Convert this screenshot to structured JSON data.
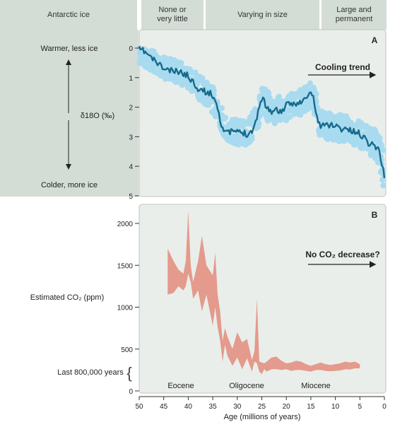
{
  "header": {
    "left_label": "Antarctic ice",
    "segments": [
      {
        "label": "None or\nvery little"
      },
      {
        "label": "Varying in size"
      },
      {
        "label": "Large and\npermanent"
      }
    ]
  },
  "colors": {
    "left_band": "#d4dcd6",
    "panel_bg": "#eaeeea",
    "raw_points": "#a8dbf0",
    "smoothed_line": "#166a8a",
    "co2_band": "#e49a8c",
    "header_bg": "#d4dcd6"
  },
  "chart_data": [
    {
      "type": "line",
      "panel_label": "A",
      "annotation": "Cooling trend",
      "ylabel": "δ18O (‰)",
      "ylabel_top": "Warmer, less ice",
      "ylabel_bottom": "Colder, more ice",
      "ylim": [
        5,
        0
      ],
      "yticks": [
        0,
        1,
        2,
        3,
        4,
        5
      ],
      "xlim": [
        50,
        0
      ],
      "x_reversed": true,
      "series": [
        {
          "role": "smoothed",
          "x": [
            50,
            49,
            48,
            47.5,
            47,
            46,
            45,
            44,
            43,
            42,
            41,
            40,
            39,
            38,
            37,
            36,
            35,
            34.5,
            34,
            33.5,
            33,
            32,
            31,
            30,
            29,
            28,
            27,
            26,
            25.5,
            25,
            24.5,
            24,
            23,
            22,
            21,
            20,
            19,
            18,
            17,
            16,
            15,
            14.5,
            14,
            13.5,
            13,
            12,
            11,
            10,
            9,
            8,
            7,
            6,
            5,
            4,
            3,
            2,
            1.5,
            1,
            0.5,
            0
          ],
          "y": [
            0.05,
            0.1,
            0.25,
            0.35,
            0.4,
            0.55,
            0.7,
            0.75,
            0.8,
            0.8,
            0.85,
            0.95,
            1.15,
            1.35,
            1.45,
            1.5,
            1.6,
            1.75,
            2.0,
            2.4,
            2.7,
            2.9,
            2.8,
            2.85,
            2.85,
            2.9,
            2.8,
            2.4,
            1.9,
            1.7,
            1.8,
            2.0,
            2.15,
            2.1,
            2.15,
            1.95,
            1.9,
            1.85,
            1.85,
            1.7,
            1.5,
            1.7,
            2.1,
            2.5,
            2.65,
            2.6,
            2.6,
            2.6,
            2.75,
            2.7,
            2.8,
            2.85,
            2.9,
            3.05,
            3.25,
            3.25,
            3.4,
            3.5,
            3.9,
            4.4
          ]
        },
        {
          "role": "raw_spread",
          "x": [
            50,
            48,
            46,
            44,
            42,
            40,
            38,
            36,
            34,
            33,
            32,
            30,
            28,
            26,
            25,
            24,
            22,
            20,
            18,
            16,
            15,
            14,
            13,
            12,
            10,
            8,
            6,
            4,
            2,
            1,
            0
          ],
          "y_min": [
            0,
            0,
            0.15,
            0.35,
            0.45,
            0.55,
            0.9,
            1.15,
            1.5,
            2.05,
            2.45,
            2.4,
            2.45,
            1.95,
            1.3,
            1.45,
            1.65,
            1.55,
            1.45,
            1.3,
            1.15,
            1.4,
            2.1,
            2.2,
            2.2,
            2.3,
            2.4,
            2.6,
            2.75,
            3.0,
            3.3
          ],
          "y_max": [
            0.55,
            0.75,
            0.95,
            1.1,
            1.2,
            1.35,
            1.75,
            1.95,
            2.45,
            2.9,
            3.2,
            3.3,
            3.35,
            2.85,
            2.2,
            2.45,
            2.6,
            2.5,
            2.35,
            2.15,
            1.95,
            2.55,
            3.05,
            3.1,
            3.1,
            3.25,
            3.3,
            3.5,
            3.75,
            4.0,
            4.95
          ]
        }
      ]
    },
    {
      "type": "area",
      "panel_label": "B",
      "annotation": "No CO₂ decrease?",
      "ylabel": "Estimated CO₂ (ppm)",
      "side_note": "Last 800,000 years",
      "ylim": [
        0,
        2100
      ],
      "yticks": [
        0,
        500,
        1000,
        1500,
        2000
      ],
      "xlim": [
        50,
        0
      ],
      "x_reversed": true,
      "xticks": [
        50,
        45,
        40,
        35,
        30,
        25,
        20,
        15,
        10,
        5,
        0
      ],
      "xlabel": "Age (millions of years)",
      "epochs": [
        "Eocene",
        "Oligocene",
        "Miocene"
      ],
      "band": {
        "x": [
          44.2,
          43,
          42,
          41,
          40.5,
          40,
          39.5,
          39,
          38,
          37.2,
          36.3,
          35,
          34.5,
          34,
          33.5,
          33,
          32.5,
          32,
          31,
          30,
          29,
          28,
          27,
          26.5,
          26,
          25.5,
          25,
          24.5,
          24,
          23,
          22,
          21,
          20,
          19,
          18,
          17,
          16,
          15,
          14,
          13,
          12,
          11,
          10,
          9,
          8,
          7,
          6,
          5
        ],
        "low": [
          1150,
          1170,
          1250,
          1200,
          1250,
          1400,
          1300,
          1100,
          1200,
          950,
          1150,
          780,
          1000,
          760,
          600,
          350,
          550,
          420,
          300,
          400,
          260,
          390,
          230,
          350,
          330,
          230,
          200,
          260,
          230,
          260,
          260,
          250,
          260,
          240,
          250,
          250,
          240,
          230,
          250,
          250,
          240,
          235,
          240,
          245,
          260,
          255,
          270,
          270
        ],
        "high": [
          1700,
          1550,
          1450,
          1400,
          1550,
          2150,
          1500,
          1300,
          1550,
          1850,
          1500,
          1380,
          1650,
          1150,
          950,
          600,
          750,
          650,
          500,
          700,
          580,
          620,
          370,
          480,
          1100,
          350,
          340,
          330,
          350,
          400,
          410,
          360,
          330,
          340,
          360,
          350,
          320,
          300,
          320,
          340,
          320,
          310,
          320,
          330,
          350,
          340,
          350,
          320
        ]
      }
    }
  ]
}
